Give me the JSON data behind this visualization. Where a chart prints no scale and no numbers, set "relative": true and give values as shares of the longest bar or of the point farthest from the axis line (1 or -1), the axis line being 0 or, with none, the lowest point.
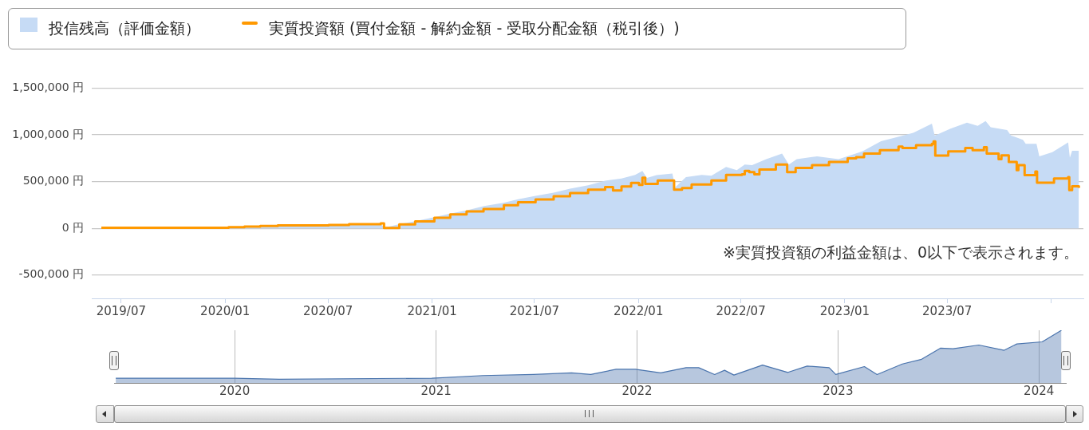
{
  "chart_data": [
    {
      "type": "area",
      "legend": "top left",
      "grid": "y",
      "xlim": [
        "2019-05-10",
        "2024-02-27"
      ],
      "xticks": [
        {
          "value": "2019-07-01",
          "label": "2019/07"
        },
        {
          "value": "2020-01-01",
          "label": "2020/01"
        },
        {
          "value": "2020-07-01",
          "label": "2020/07"
        },
        {
          "value": "2021-01-01",
          "label": "2021/01"
        },
        {
          "value": "2021-07-01",
          "label": "2021/07"
        },
        {
          "value": "2022-01-01",
          "label": "2022/01"
        },
        {
          "value": "2022-07-01",
          "label": "2022/07"
        },
        {
          "value": "2023-01-01",
          "label": "2023/01"
        },
        {
          "value": "2023-07-01",
          "label": "2023/07"
        },
        {
          "value": "2024-01-01",
          "label": null
        }
      ],
      "ylim": [
        -750000,
        1500000
      ],
      "yticks": [
        {
          "value": -500000,
          "label": "-500,000 円"
        },
        {
          "value": 0,
          "label": "0 円"
        },
        {
          "value": 500000,
          "label": "500,000 円"
        },
        {
          "value": 1000000,
          "label": "1,000,000 円"
        },
        {
          "value": 1500000,
          "label": "1,500,000 円"
        }
      ],
      "annotations": [
        "※実質投資額の利益金額は、0以下で表示されます。"
      ],
      "series": [
        {
          "type": "area",
          "name": "投信残高（評価金額）",
          "color": "#c6dbf5",
          "x": [
            "2019-05-27",
            "2020-01-07",
            "2020-04-03",
            "2020-07-02",
            "2020-10-02",
            "2020-10-08",
            "2020-11-04",
            "2020-12-02",
            "2021-01-05",
            "2021-02-02",
            "2021-03-03",
            "2021-04-03",
            "2021-05-07",
            "2021-06-02",
            "2021-07-03",
            "2021-08-04",
            "2021-09-02",
            "2021-10-04",
            "2021-11-03",
            "2021-12-02",
            "2021-12-26",
            "2022-01-08",
            "2022-01-16",
            "2022-02-02",
            "2022-03-02",
            "2022-03-07",
            "2022-03-26",
            "2022-04-23",
            "2022-05-10",
            "2022-06-05",
            "2022-06-24",
            "2022-07-08",
            "2022-07-21",
            "2022-08-15",
            "2022-09-12",
            "2022-09-24",
            "2022-10-08",
            "2022-11-13",
            "2022-12-21",
            "2023-02-01",
            "2023-03-06",
            "2023-04-04",
            "2023-05-02",
            "2023-06-04",
            "2023-06-09",
            "2023-07-07",
            "2023-08-05",
            "2023-08-24",
            "2023-09-07",
            "2023-09-16",
            "2023-10-15",
            "2023-10-22",
            "2023-11-12",
            "2023-11-17",
            "2023-12-06",
            "2023-12-11",
            "2024-01-03",
            "2024-01-31",
            "2024-02-03",
            "2024-02-07",
            "2024-02-19"
          ],
          "values": [
            5000,
            12000,
            30000,
            37000,
            55000,
            5000,
            43000,
            75000,
            118000,
            157000,
            192000,
            237000,
            272000,
            311000,
            346000,
            382000,
            423000,
            459000,
            509000,
            533000,
            571000,
            613000,
            539000,
            568000,
            586000,
            438000,
            548000,
            571000,
            562000,
            657000,
            622000,
            681000,
            675000,
            740000,
            799000,
            681000,
            740000,
            770000,
            740000,
            823000,
            932000,
            977000,
            1021000,
            1119000,
            992000,
            1066000,
            1131000,
            1095000,
            1148000,
            1080000,
            1051000,
            992000,
            947000,
            903000,
            903000,
            770000,
            814000,
            918000,
            755000,
            829000,
            829000
          ]
        },
        {
          "type": "step",
          "name": "実質投資額 (買付金額 - 解約金額 - 受取分配金額（税引後）)",
          "color": "#ff9900",
          "x": [
            "2019-05-27",
            "2020-01-07",
            "2020-02-04",
            "2020-03-03",
            "2020-04-03",
            "2020-07-02",
            "2020-08-07",
            "2020-10-02",
            "2020-10-08",
            "2020-11-04",
            "2020-12-02",
            "2021-01-05",
            "2021-02-02",
            "2021-03-03",
            "2021-04-02",
            "2021-05-08",
            "2021-06-02",
            "2021-07-03",
            "2021-08-04",
            "2021-09-02",
            "2021-10-04",
            "2021-11-03",
            "2021-11-17",
            "2021-12-02",
            "2021-12-19",
            "2022-01-02",
            "2022-01-08",
            "2022-01-13",
            "2022-02-04",
            "2022-03-05",
            "2022-03-19",
            "2022-04-05",
            "2022-05-10",
            "2022-06-05",
            "2022-07-03",
            "2022-07-08",
            "2022-07-16",
            "2022-07-25",
            "2022-08-03",
            "2022-09-01",
            "2022-09-21",
            "2022-10-06",
            "2022-11-04",
            "2022-12-04",
            "2023-01-06",
            "2023-01-21",
            "2023-02-04",
            "2023-03-04",
            "2023-04-06",
            "2023-04-13",
            "2023-05-07",
            "2023-06-04",
            "2023-06-07",
            "2023-06-10",
            "2023-07-03",
            "2023-08-02",
            "2023-08-15",
            "2023-09-04",
            "2023-09-09",
            "2023-09-30",
            "2023-10-05",
            "2023-10-18",
            "2023-11-01",
            "2023-11-04",
            "2023-11-15",
            "2023-12-04",
            "2023-12-07",
            "2024-01-06",
            "2024-01-31",
            "2024-02-02",
            "2024-02-07",
            "2024-02-19"
          ],
          "values": [
            5000,
            12000,
            18000,
            24000,
            30000,
            36000,
            44000,
            53000,
            3000,
            41000,
            74000,
            112000,
            148000,
            181000,
            207000,
            246000,
            278000,
            308000,
            343000,
            376000,
            414000,
            441000,
            405000,
            447000,
            485000,
            465000,
            542000,
            474000,
            512000,
            414000,
            429000,
            468000,
            512000,
            571000,
            577000,
            613000,
            601000,
            577000,
            628000,
            681000,
            601000,
            645000,
            675000,
            710000,
            749000,
            761000,
            799000,
            835000,
            873000,
            858000,
            888000,
            903000,
            929000,
            778000,
            823000,
            858000,
            835000,
            867000,
            799000,
            740000,
            781000,
            710000,
            622000,
            675000,
            568000,
            607000,
            488000,
            533000,
            548000,
            408000,
            450000,
            432000
          ]
        }
      ]
    },
    {
      "type": "area",
      "relative": true,
      "grid": "x",
      "tick_labels": "x",
      "xlim": [
        "2019-05-27",
        "2024-02-19"
      ],
      "xticks": [
        {
          "value": "2020-01-01",
          "label": "2020"
        },
        {
          "value": "2021-01-01",
          "label": "2021"
        },
        {
          "value": "2022-01-01",
          "label": "2022"
        },
        {
          "value": "2023-01-01",
          "label": "2023"
        },
        {
          "value": "2024-01-01",
          "label": "2024"
        }
      ],
      "series": [
        {
          "color": "#4a74ad",
          "x": [
            "2019-05-30",
            "2020-01-01",
            "2020-03-22",
            "2020-12-24",
            "2021-03-27",
            "2021-06-27",
            "2021-09-04",
            "2021-10-09",
            "2021-11-24",
            "2021-12-29",
            "2022-02-13",
            "2022-03-31",
            "2022-04-23",
            "2022-05-22",
            "2022-06-09",
            "2022-06-26",
            "2022-08-17",
            "2022-10-02",
            "2022-11-06",
            "2022-12-16",
            "2022-12-28",
            "2023-02-18",
            "2023-03-13",
            "2023-04-28",
            "2023-06-02",
            "2023-07-06",
            "2023-07-29",
            "2023-09-14",
            "2023-10-30",
            "2023-11-22",
            "2024-01-07",
            "2024-02-11"
          ],
          "values": [
            0.09,
            0.09,
            0.07,
            0.09,
            0.14,
            0.16,
            0.19,
            0.16,
            0.26,
            0.26,
            0.19,
            0.29,
            0.29,
            0.16,
            0.24,
            0.15,
            0.34,
            0.2,
            0.32,
            0.29,
            0.16,
            0.31,
            0.16,
            0.36,
            0.45,
            0.66,
            0.65,
            0.72,
            0.62,
            0.74,
            0.78,
            1
          ]
        }
      ]
    }
  ]
}
